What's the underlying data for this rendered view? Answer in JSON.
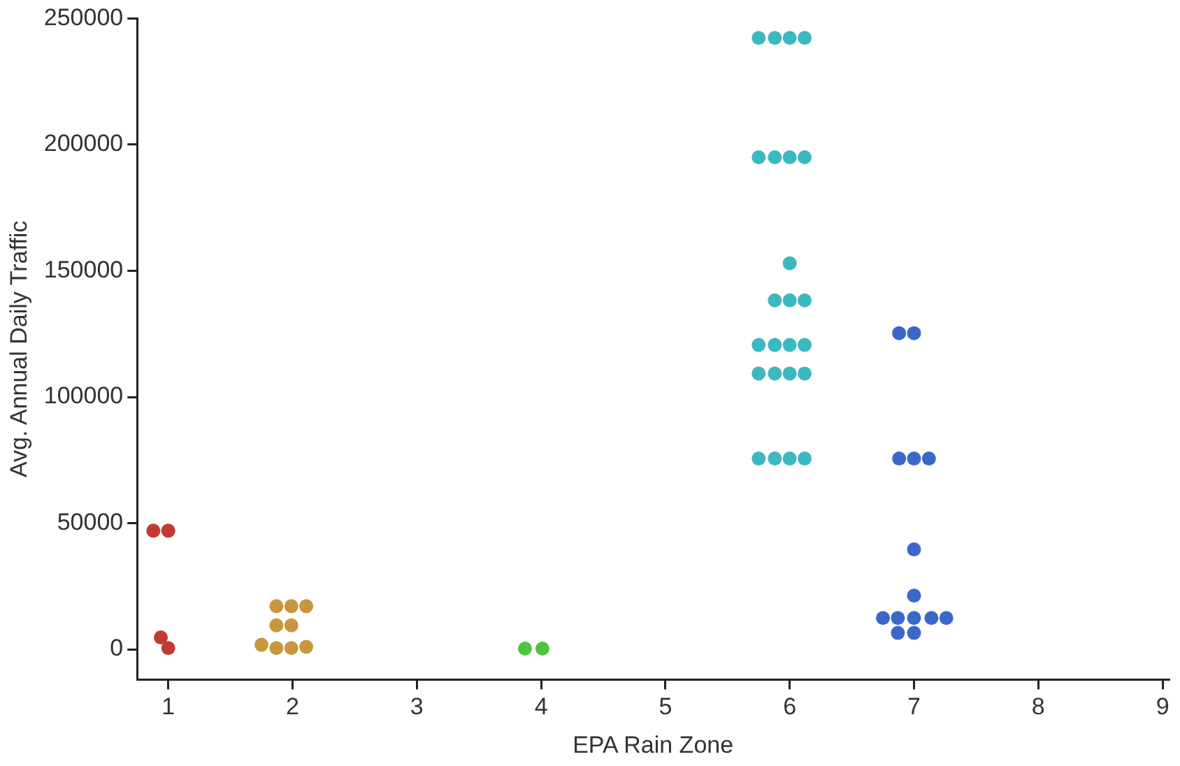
{
  "chart_data": {
    "type": "scatter",
    "xlabel": "EPA Rain Zone",
    "ylabel": "Avg. Annual Daily Traffic",
    "xlim": [
      0.75,
      9.05
    ],
    "xticks": [
      1,
      2,
      3,
      4,
      5,
      6,
      7,
      8,
      9
    ],
    "ylim": [
      -12000,
      250000
    ],
    "yticks": [
      0,
      50000,
      100000,
      150000,
      200000,
      250000
    ],
    "grid": false,
    "legend": false,
    "marker": "circle",
    "series": [
      {
        "color": "#c23b33",
        "x": [
          0.88,
          1.0,
          0.94,
          1.0
        ],
        "values": [
          47000,
          47000,
          4700,
          500
        ]
      },
      {
        "color": "#c8963e",
        "x": [
          1.87,
          1.99,
          2.11,
          1.87,
          1.99,
          1.75,
          1.87,
          1.99,
          2.11
        ],
        "values": [
          17100,
          17100,
          17100,
          9500,
          9500,
          1800,
          500,
          500,
          1000
        ]
      },
      {
        "color": "#4ec43f",
        "x": [
          3.87,
          4.01
        ],
        "values": [
          300,
          300
        ]
      },
      {
        "color": "#3cb8c0",
        "x": [
          5.75,
          5.88,
          6.0,
          6.12,
          5.75,
          5.88,
          6.0,
          6.12,
          6.0,
          5.88,
          6.0,
          6.12,
          5.75,
          5.88,
          6.0,
          6.12,
          5.75,
          5.88,
          6.0,
          6.12,
          5.75,
          5.88,
          6.0,
          6.12
        ],
        "values": [
          242300,
          242300,
          242300,
          242300,
          195000,
          195000,
          195000,
          195000,
          153000,
          138300,
          138300,
          138300,
          120600,
          120600,
          120600,
          120600,
          109300,
          109300,
          109300,
          109300,
          75600,
          75600,
          75600,
          75600
        ]
      },
      {
        "color": "#3b68c8",
        "x": [
          6.88,
          7.0,
          6.88,
          7.0,
          7.12,
          7.0,
          7.0,
          6.75,
          6.87,
          7.0,
          7.14,
          7.26,
          6.87,
          7.0
        ],
        "values": [
          125300,
          125300,
          75600,
          75600,
          75600,
          39600,
          21300,
          12400,
          12400,
          12400,
          12400,
          12400,
          6500,
          6500
        ]
      }
    ]
  }
}
